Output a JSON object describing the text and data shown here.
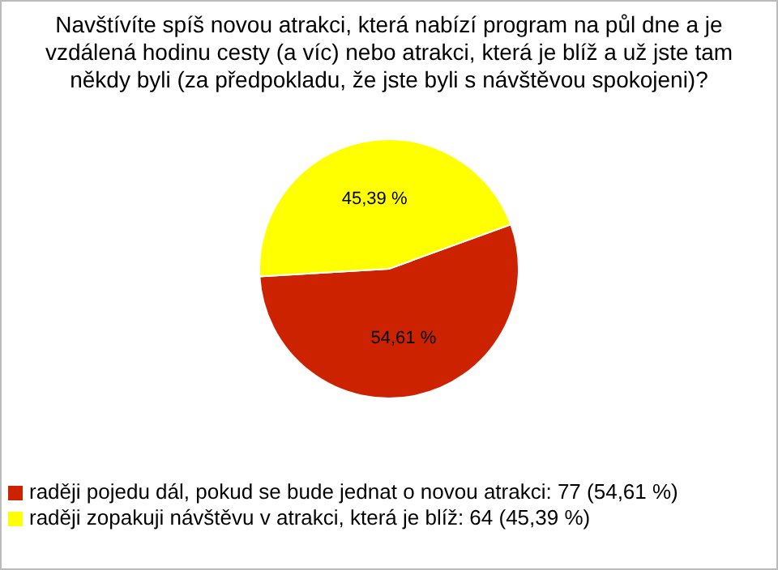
{
  "chart_data": {
    "type": "pie",
    "title": "Navštívíte spíš novou atrakci, která nabízí program na půl dne a je vzdálená hodinu cesty (a víc) nebo atrakci, která je blíž a už jste tam někdy byli (za předpokladu, že jste byli s návštěvou spokojeni)?",
    "categories": [
      "raději pojedu dál, pokud se bude jednat o novou atrakci: 77 (54,61 %)",
      "raději zopakuji návštěvu v atrakci, která je blíž: 64 (45,39 %)"
    ],
    "values": [
      54.61,
      45.39
    ],
    "colors": [
      "#cc2200",
      "#ffff00"
    ],
    "value_labels": [
      "54,61 %",
      "45,39 %"
    ],
    "legend": "bottom left"
  }
}
